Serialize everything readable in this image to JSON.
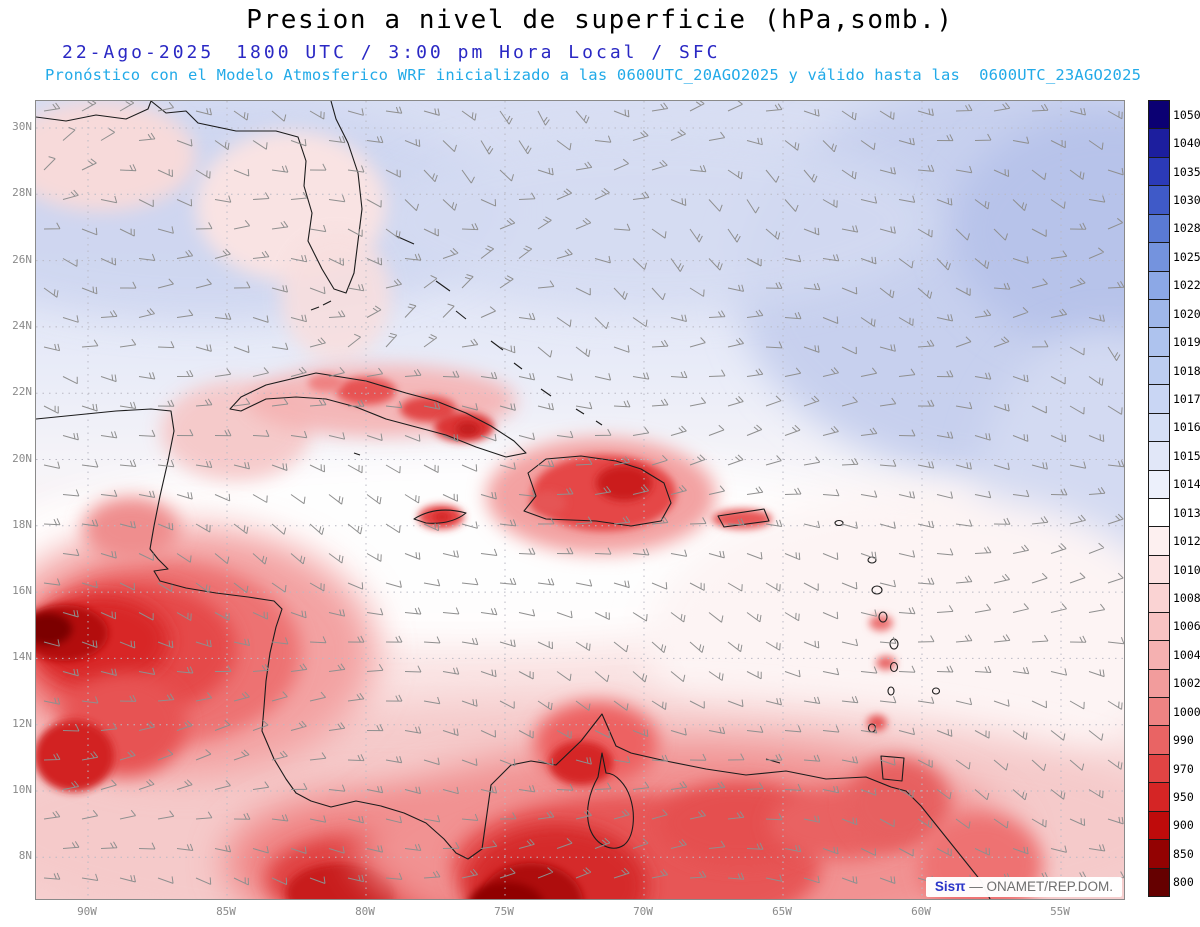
{
  "header": {
    "title": "Presion a nivel de superficie (hPa,somb.)",
    "date": "22-Ago-2025",
    "time_info": "1800 UTC / 3:00 pm Hora Local / SFC",
    "forecast_line": "Pronóstico con el Modelo Atmosferico WRF inicializado a las 0600UTC_20AGO2025 y válido hasta las  0600UTC_23AGO2025"
  },
  "watermark": {
    "brand": "Sisπ",
    "source": "— ONAMET/REP.DOM."
  },
  "colors": {
    "title": "#000000",
    "date_blue": "#2a28c4",
    "forecast_cyan": "#22aae8",
    "axis_gray": "#8a8a8a",
    "wind_barb_gray": "#8f8f8f",
    "coastline_black": "#1c1c1c",
    "watermark_blue": "#2b35c8"
  },
  "chart_data": {
    "type": "heatmap",
    "title": "Presion a nivel de superficie (hPa,somb.)",
    "valid": "22-Ago-2025 1800 UTC / 3:00 pm Hora Local / SFC",
    "model": "WRF inicializado 0600UTC_20AGO2025, válido hasta 0600UTC_23AGO2025",
    "region": "Gulf of Mexico, Caribbean, Central America and northern South America",
    "lat_ticks": [
      "30N",
      "28N",
      "26N",
      "24N",
      "22N",
      "20N",
      "18N",
      "16N",
      "14N",
      "12N",
      "10N",
      "8N"
    ],
    "lon_ticks": [
      "90W",
      "85W",
      "80W",
      "75W",
      "70W",
      "65W",
      "60W",
      "55W"
    ],
    "axis_extent": {
      "lon": [
        "~92W",
        "~53W"
      ],
      "lat": [
        "~7N",
        "~31N"
      ]
    },
    "grid": true,
    "colorbar": {
      "units": "hPa",
      "position": "right",
      "levels": [
        1050,
        1040,
        1035,
        1030,
        1028,
        1025,
        1022,
        1020,
        1019,
        1018,
        1017,
        1016,
        1015,
        1014,
        1013,
        1012,
        1010,
        1008,
        1006,
        1004,
        1002,
        1000,
        990,
        970,
        950,
        900,
        850,
        800
      ],
      "colors": [
        "#0b0073",
        "#1c1e9e",
        "#2b3ab8",
        "#3f5ac8",
        "#5a7ad4",
        "#7493de",
        "#8ca8e6",
        "#9fb7ea",
        "#aec3ee",
        "#bccdf1",
        "#c9d6f4",
        "#d5dff6",
        "#e1e7f8",
        "#ecf0fb",
        "#ffffff",
        "#fdf0f0",
        "#fce2e2",
        "#fad3d3",
        "#f8c3c3",
        "#f5b1b1",
        "#f29c9c",
        "#ee8383",
        "#e96464",
        "#e14444",
        "#d52525",
        "#bf0b0b",
        "#930202",
        "#650000"
      ]
    },
    "features": [
      "High-pressure ridge (1016-1020 hPa, blue/lavender shading) over the subtropical Atlantic north of ~22N, strongest in the northeast corner",
      "1013-1014 hPa white transition band across the central Caribbean near 16-18N",
      "Deep thermal lows (red shading, <=1000 hPa cores) over Guatemala/Honduras/Nicaragua, Panama-Colombia and along the Venezuelan coast",
      "Local low-pressure maxima over Cuba, Jamaica, Hispaniola and Puerto Rico",
      "Gray wind barbs over the whole domain showing surface winds, predominantly easterly trade winds"
    ],
    "wind_barbs": {
      "color": "#8f8f8f",
      "description": "surface wind barbs, mostly easterlies"
    }
  }
}
